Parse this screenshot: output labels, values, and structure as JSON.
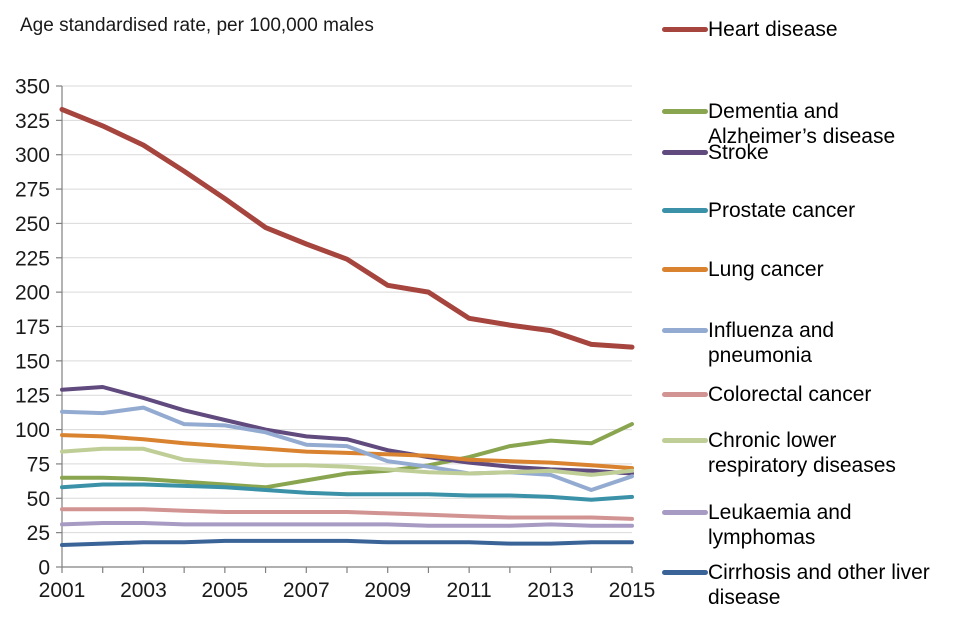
{
  "title": "Age standardised rate, per 100,000 males",
  "chart_data": {
    "type": "line",
    "title": "Age standardised rate, per 100,000 males",
    "xlabel": "",
    "ylabel": "Age standardised rate, per 100,000 males",
    "x": [
      2001,
      2002,
      2003,
      2004,
      2005,
      2006,
      2007,
      2008,
      2009,
      2010,
      2011,
      2012,
      2013,
      2014,
      2015
    ],
    "x_tick_labels": [
      "2001",
      "2003",
      "2005",
      "2007",
      "2009",
      "2011",
      "2013",
      "2015"
    ],
    "ylim": [
      0,
      350
    ],
    "y_tick_step": 25,
    "y_tick_labels": [
      "0",
      "25",
      "50",
      "75",
      "100",
      "125",
      "150",
      "175",
      "200",
      "225",
      "250",
      "275",
      "300",
      "325",
      "350"
    ],
    "grid": "horizontal",
    "legend_position": "right",
    "axis_color": "#808080",
    "grid_color": "#D9D9D9",
    "series": [
      {
        "name": "Heart disease",
        "legend_label": "Heart disease",
        "color": "#A6443E",
        "values": [
          333,
          321,
          307,
          288,
          268,
          247,
          235,
          224,
          205,
          200,
          181,
          176,
          172,
          162,
          160
        ]
      },
      {
        "name": "Dementia and Alzheimer's disease",
        "legend_label": "Dementia and\nAlzheimer’s disease",
        "color": "#89A550",
        "values": [
          65,
          65,
          64,
          62,
          60,
          58,
          63,
          68,
          70,
          74,
          80,
          88,
          92,
          90,
          104
        ]
      },
      {
        "name": "Stroke",
        "legend_label": "Stroke",
        "color": "#604A7E",
        "values": [
          129,
          131,
          123,
          114,
          107,
          100,
          95,
          93,
          85,
          80,
          76,
          73,
          71,
          70,
          68
        ]
      },
      {
        "name": "Prostate cancer",
        "legend_label": "Prostate cancer",
        "color": "#3B92A8",
        "values": [
          58,
          60,
          60,
          59,
          58,
          56,
          54,
          53,
          53,
          53,
          52,
          52,
          51,
          49,
          51
        ]
      },
      {
        "name": "Lung cancer",
        "legend_label": "Lung cancer",
        "color": "#D9822F",
        "values": [
          96,
          95,
          93,
          90,
          88,
          86,
          84,
          83,
          82,
          81,
          78,
          77,
          76,
          74,
          72
        ]
      },
      {
        "name": "Influenza and pneumonia",
        "legend_label": "Influenza and\npneumonia",
        "color": "#94ABD1",
        "values": [
          113,
          112,
          116,
          104,
          103,
          98,
          89,
          88,
          77,
          73,
          68,
          69,
          67,
          56,
          66
        ]
      },
      {
        "name": "Colorectal cancer",
        "legend_label": "Colorectal cancer",
        "color": "#D29492",
        "values": [
          42,
          42,
          42,
          41,
          40,
          40,
          40,
          40,
          39,
          38,
          37,
          36,
          36,
          36,
          35
        ]
      },
      {
        "name": "Chronic lower respiratory diseases",
        "legend_label": "Chronic lower\nrespiratory diseases",
        "color": "#BFCD96",
        "values": [
          84,
          86,
          86,
          78,
          76,
          74,
          74,
          73,
          71,
          69,
          68,
          69,
          70,
          67,
          70
        ]
      },
      {
        "name": "Leukaemia and lymphomas",
        "legend_label": "Leukaemia and\nlymphomas",
        "color": "#A89BC3",
        "values": [
          31,
          32,
          32,
          31,
          31,
          31,
          31,
          31,
          31,
          30,
          30,
          30,
          31,
          30,
          30
        ]
      },
      {
        "name": "Cirrhosis and other liver disease",
        "legend_label": "Cirrhosis and other liver\ndisease",
        "color": "#3A6398",
        "values": [
          16,
          17,
          18,
          18,
          19,
          19,
          19,
          19,
          18,
          18,
          18,
          17,
          17,
          18,
          18
        ]
      }
    ]
  }
}
